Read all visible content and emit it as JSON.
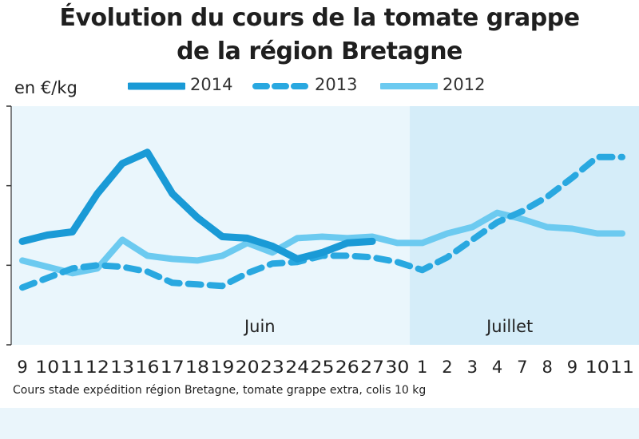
{
  "chart_data": {
    "type": "line",
    "title": "Évolution du cours de la tomate grappe de la région Bretagne",
    "title_lines": [
      "Évolution du cours de la tomate grappe",
      "de la région Bretagne"
    ],
    "unit_label": "en €/kg",
    "ylim": [
      0.8,
      2.3
    ],
    "categories": [
      "9",
      "10",
      "11",
      "12",
      "13",
      "16",
      "17",
      "18",
      "19",
      "20",
      "23",
      "24",
      "25",
      "26",
      "27",
      "30",
      "1",
      "2",
      "3",
      "4",
      "7",
      "8",
      "9",
      "10",
      "11"
    ],
    "period_labels": [
      "Juin",
      "Juillet"
    ],
    "series": [
      {
        "name": "2014",
        "style": "solid",
        "color": "#1a9ad6",
        "values": [
          1.45,
          1.49,
          1.51,
          1.75,
          1.94,
          2.01,
          1.75,
          1.6,
          1.48,
          1.47,
          1.42,
          1.34,
          1.38,
          1.44,
          1.45,
          null,
          null,
          null,
          null,
          null,
          null,
          null,
          null,
          null,
          null
        ]
      },
      {
        "name": "2013",
        "style": "dashed",
        "color": "#29a8e0",
        "values": [
          1.16,
          1.22,
          1.28,
          1.3,
          1.29,
          1.26,
          1.19,
          1.18,
          1.17,
          1.25,
          1.31,
          1.32,
          1.36,
          1.36,
          1.35,
          1.32,
          1.27,
          1.35,
          1.46,
          1.57,
          1.64,
          1.73,
          1.85,
          1.98,
          1.98
        ]
      },
      {
        "name": "2012",
        "style": "solid",
        "color": "#6ccaf0",
        "values": [
          1.33,
          1.29,
          1.25,
          1.28,
          1.46,
          1.36,
          1.34,
          1.33,
          1.36,
          1.44,
          1.38,
          1.47,
          1.48,
          1.47,
          1.48,
          1.44,
          1.44,
          1.5,
          1.54,
          1.63,
          1.59,
          1.54,
          1.53,
          1.5,
          1.5
        ]
      }
    ],
    "grid": false,
    "legend": "top"
  },
  "footnote": "Cours stade expédition région Bretagne, tomate grappe extra, colis 10 kg",
  "colors": {
    "juin_bg": "#eaf6fc",
    "juillet_bg": "#d5edf9",
    "bottom_band": "#eaf5fb"
  }
}
